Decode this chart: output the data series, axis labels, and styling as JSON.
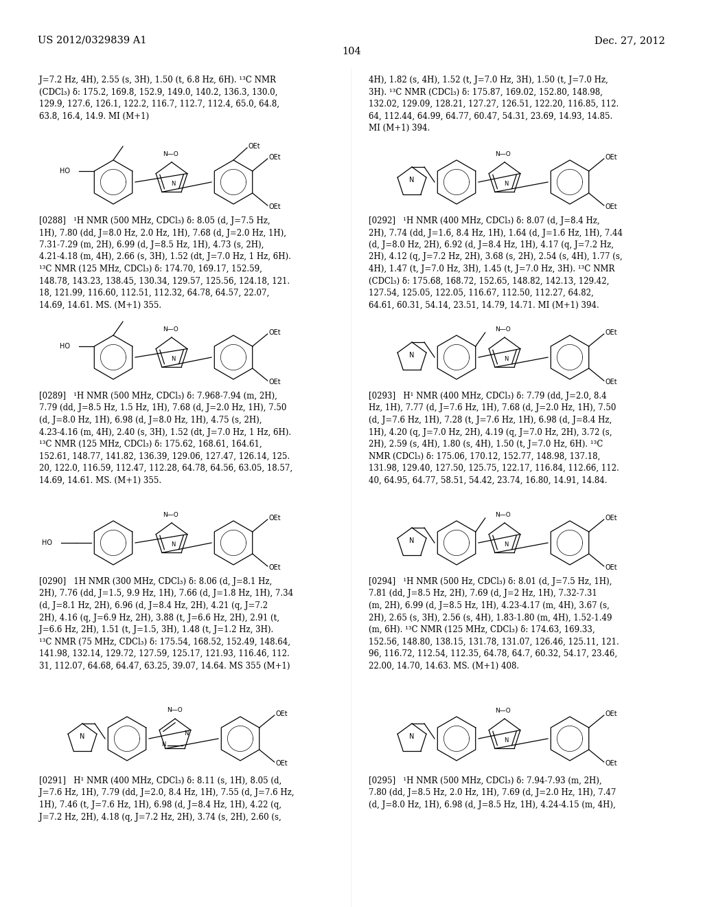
{
  "page_width": 10.24,
  "page_height": 13.2,
  "header_left": "US 2012/0329839 A1",
  "header_right": "Dec. 27, 2012",
  "page_number": "104",
  "top_left": "J=7.2 Hz, 4H), 2.55 (s, 3H), 1.50 (t, 6.8 Hz, 6H). ¹³C NMR\n(CDCl₃) δ: 175.2, 169.8, 152.9, 149.0, 140.2, 136.3, 130.0,\n129.9, 127.6, 126.1, 122.2, 116.7, 112.7, 112.4, 65.0, 64.8,\n63.8, 16.4, 14.9. MI (M+1)",
  "top_right": "4H), 1.82 (s, 4H), 1.52 (t, J=7.0 Hz, 3H), 1.50 (t, J=7.0 Hz,\n3H). ¹³C NMR (CDCl₃) δ: 175.87, 169.02, 152.80, 148.98,\n132.02, 129.09, 128.21, 127.27, 126.51, 122.20, 116.85, 112.\n64, 112.44, 64.99, 64.77, 60.47, 54.31, 23.69, 14.93, 14.85.\nMI (M+1) 394.",
  "t288": "[0288]   ¹H NMR (500 MHz, CDCl₃) δ: 8.05 (d, J=7.5 Hz,\n1H), 7.80 (dd, J=8.0 Hz, 2.0 Hz, 1H), 7.68 (d, J=2.0 Hz, 1H),\n7.31-7.29 (m, 2H), 6.99 (d, J=8.5 Hz, 1H), 4.73 (s, 2H),\n4.21-4.18 (m, 4H), 2.66 (s, 3H), 1.52 (dt, J=7.0 Hz, 1 Hz, 6H).\n¹³C NMR (125 MHz, CDCl₃) δ: 174.70, 169.17, 152.59,\n148.78, 143.23, 138.45, 130.34, 129.57, 125.56, 124.18, 121.\n18, 121.99, 116.60, 112.51, 112.32, 64.78, 64.57, 22.07,\n14.69, 14.61. MS. (M+1) 355.",
  "t292": "[0292]   ¹H NMR (400 MHz, CDCl₃) δ: 8.07 (d, J=8.4 Hz,\n2H), 7.74 (dd, J=1.6, 8.4 Hz, 1H), 1.64 (d, J=1.6 Hz, 1H), 7.44\n(d, J=8.0 Hz, 2H), 6.92 (d, J=8.4 Hz, 1H), 4.17 (q, J=7.2 Hz,\n2H), 4.12 (q, J=7.2 Hz, 2H), 3.68 (s, 2H), 2.54 (s, 4H), 1.77 (s,\n4H), 1.47 (t, J=7.0 Hz, 3H), 1.45 (t, J=7.0 Hz, 3H). ¹³C NMR\n(CDCl₃) δ: 175.68, 168.72, 152.65, 148.82, 142.13, 129.42,\n127.54, 125.05, 122.05, 116.67, 112.50, 112.27, 64.82,\n64.61, 60.31, 54.14, 23.51, 14.79, 14.71. MI (M+1) 394.",
  "t289": "[0289]   ¹H NMR (500 MHz, CDCl₃) δ: 7.968-7.94 (m, 2H),\n7.79 (dd, J=8.5 Hz, 1.5 Hz, 1H), 7.68 (d, J=2.0 Hz, 1H), 7.50\n(d, J=8.0 Hz, 1H), 6.98 (d, J=8.0 Hz, 1H), 4.75 (s, 2H),\n4.23-4.16 (m, 4H), 2.40 (s, 3H), 1.52 (dt, J=7.0 Hz, 1 Hz, 6H).\n¹³C NMR (125 MHz, CDCl₃) δ: 175.62, 168.61, 164.61,\n152.61, 148.77, 141.82, 136.39, 129.06, 127.47, 126.14, 125.\n20, 122.0, 116.59, 112.47, 112.28, 64.78, 64.56, 63.05, 18.57,\n14.69, 14.61. MS. (M+1) 355.",
  "t293": "[0293]   H¹ NMR (400 MHz, CDCl₃) δ: 7.79 (dd, J=2.0, 8.4\nHz, 1H), 7.77 (d, J=7.6 Hz, 1H), 7.68 (d, J=2.0 Hz, 1H), 7.50\n(d, J=7.6 Hz, 1H), 7.28 (t, J=7.6 Hz, 1H), 6.98 (d, J=8.4 Hz,\n1H), 4.20 (q, J=7.0 Hz, 2H), 4.19 (q, J=7.0 Hz, 2H), 3.72 (s,\n2H), 2.59 (s, 4H), 1.80 (s, 4H), 1.50 (t, J=7.0 Hz, 6H). ¹³C\nNMR (CDCl₃) δ: 175.06, 170.12, 152.77, 148.98, 137.18,\n131.98, 129.40, 127.50, 125.75, 122.17, 116.84, 112.66, 112.\n40, 64.95, 64.77, 58.51, 54.42, 23.74, 16.80, 14.91, 14.84.",
  "t290": "[0290]   1H NMR (300 MHz, CDCl₃) δ: 8.06 (d, J=8.1 Hz,\n2H), 7.76 (dd, J=1.5, 9.9 Hz, 1H), 7.66 (d, J=1.8 Hz, 1H), 7.34\n(d, J=8.1 Hz, 2H), 6.96 (d, J=8.4 Hz, 2H), 4.21 (q, J=7.2\n2H), 4.16 (q, J=6.9 Hz, 2H), 3.88 (t, J=6.6 Hz, 2H), 2.91 (t,\nJ=6.6 Hz, 2H), 1.51 (t, J=1.5, 3H), 1.48 (t, J=1.2 Hz, 3H).\n¹³C NMR (75 MHz, CDCl₃) δ: 175.54, 168.52, 152.49, 148.64,\n141.98, 132.14, 129.72, 127.59, 125.17, 121.93, 116.46, 112.\n31, 112.07, 64.68, 64.47, 63.25, 39.07, 14.64. MS 355 (M+1)",
  "t294": "[0294]   ¹H NMR (500 Hz, CDCl₃) δ: 8.01 (d, J=7.5 Hz, 1H),\n7.81 (dd, J=8.5 Hz, 2H), 7.69 (d, J=2 Hz, 1H), 7.32-7.31\n(m, 2H), 6.99 (d, J=8.5 Hz, 1H), 4.23-4.17 (m, 4H), 3.67 (s,\n2H), 2.65 (s, 3H), 2.56 (s, 4H), 1.83-1.80 (m, 4H), 1.52-1.49\n(m, 6H). ¹³C NMR (125 MHz, CDCl₃) δ: 174.63, 169.33,\n152.56, 148.80, 138.15, 131.78, 131.07, 126.46, 125.11, 121.\n96, 116.72, 112.54, 112.35, 64.78, 64.7, 60.32, 54.17, 23.46,\n22.00, 14.70, 14.63. MS. (M+1) 408.",
  "t291": "[0291]   H¹ NMR (400 MHz, CDCl₃) δ: 8.11 (s, 1H), 8.05 (d,\nJ=7.6 Hz, 1H), 7.79 (dd, J=2.0, 8.4 Hz, 1H), 7.55 (d, J=7.6 Hz,\n1H), 7.46 (t, J=7.6 Hz, 1H), 6.98 (d, J=8.4 Hz, 1H), 4.22 (q,\nJ=7.2 Hz, 2H), 4.18 (q, J=7.2 Hz, 2H), 3.74 (s, 2H), 2.60 (s,",
  "t295": "[0295]   ¹H NMR (500 MHz, CDCl₃) δ: 7.94-7.93 (m, 2H),\n7.80 (dd, J=8.5 Hz, 2.0 Hz, 1H), 7.69 (d, J=2.0 Hz, 1H), 7.47\n(d, J=8.0 Hz, 1H), 6.98 (d, J=8.5 Hz, 1H), 4.24-4.15 (m, 4H),"
}
